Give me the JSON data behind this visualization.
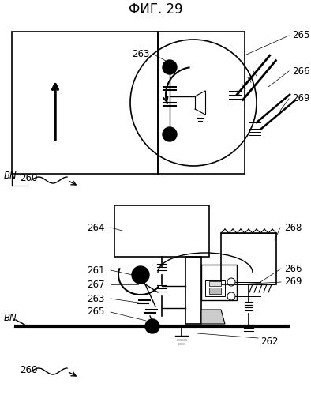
{
  "title": "ФИГ. 29",
  "bg_color": "#ffffff",
  "line_color": "#000000",
  "gray_color": "#888888",
  "title_fontsize": 12,
  "label_fontsize": 8.5
}
